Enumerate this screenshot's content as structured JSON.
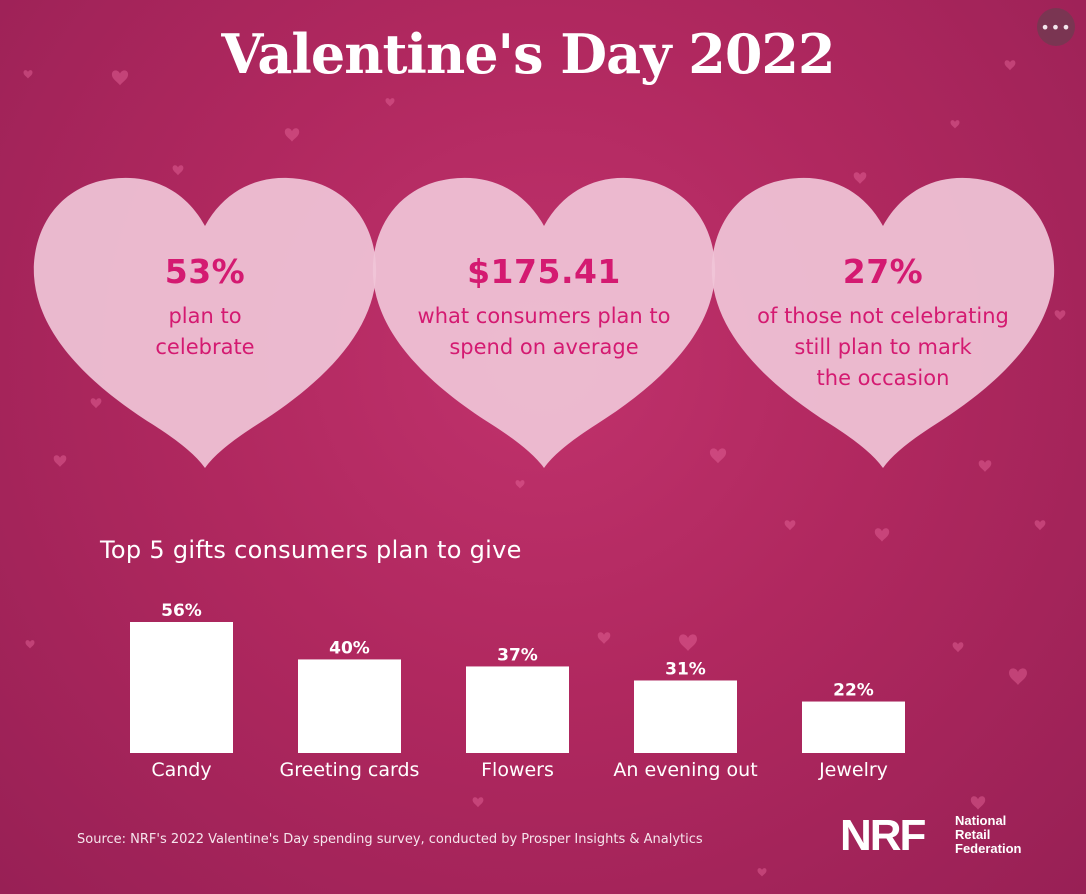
{
  "title": "Valentine's Day 2022",
  "colors": {
    "background": "#b0285f",
    "heart_fill": "#f0c6d8",
    "stat_text": "#d41a71",
    "bar": "#ffffff"
  },
  "stats": [
    {
      "value": "53%",
      "lines": [
        "plan to",
        "celebrate"
      ]
    },
    {
      "value": "$175.41",
      "lines": [
        "what consumers plan to",
        "spend on average"
      ]
    },
    {
      "value": "27%",
      "lines": [
        "of those not celebrating",
        "still plan to mark",
        "the occasion"
      ]
    }
  ],
  "chart_data": {
    "type": "bar",
    "title": "Top 5 gifts consumers plan to give",
    "categories": [
      "Candy",
      "Greeting cards",
      "Flowers",
      "An evening out",
      "Jewelry"
    ],
    "values": [
      56,
      40,
      37,
      31,
      22
    ],
    "value_labels": [
      "56%",
      "40%",
      "37%",
      "31%",
      "22%"
    ],
    "unit": "%",
    "ylim": [
      0,
      56
    ],
    "grid": false,
    "legend": "none"
  },
  "source": "Source: NRF's 2022 Valentine's Day spending survey, conducted by Prosper Insights & Analytics",
  "logo": {
    "mark": "NRF",
    "name_lines": [
      "National",
      "Retail",
      "Federation"
    ]
  },
  "more_button_icon": "more-horizontal-icon"
}
